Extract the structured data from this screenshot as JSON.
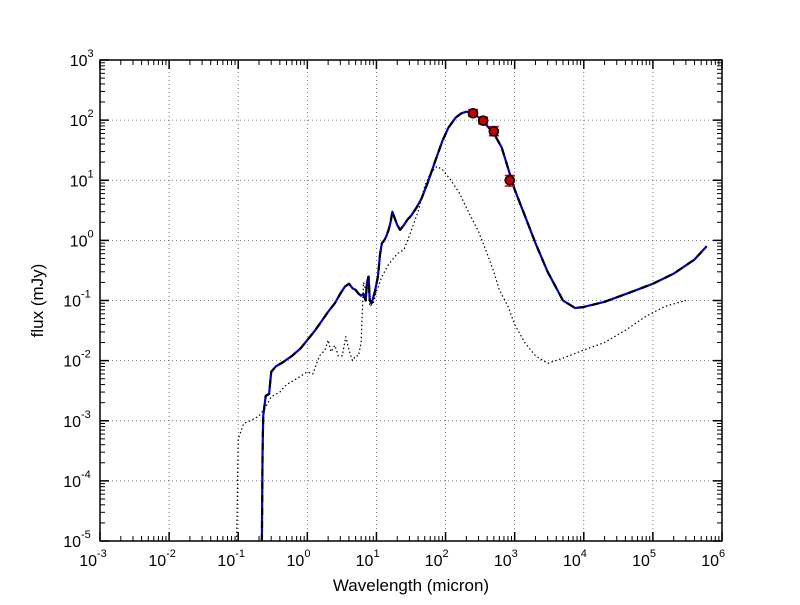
{
  "chart_data": {
    "type": "line",
    "xlabel": "Wavelength (micron)",
    "ylabel": "flux (mJy)",
    "xscale": "log",
    "yscale": "log",
    "xlim": [
      0.001,
      1000000
    ],
    "ylim": [
      1e-05,
      1000
    ],
    "grid": true,
    "x_ticks": [
      {
        "value": 0.001,
        "base": "10",
        "exp": "-3"
      },
      {
        "value": 0.01,
        "base": "10",
        "exp": "-2"
      },
      {
        "value": 0.1,
        "base": "10",
        "exp": "-1"
      },
      {
        "value": 1,
        "base": "10",
        "exp": "0"
      },
      {
        "value": 10,
        "base": "10",
        "exp": "1"
      },
      {
        "value": 100,
        "base": "10",
        "exp": "2"
      },
      {
        "value": 1000,
        "base": "10",
        "exp": "3"
      },
      {
        "value": 10000,
        "base": "10",
        "exp": "4"
      },
      {
        "value": 100000,
        "base": "10",
        "exp": "5"
      },
      {
        "value": 1000000,
        "base": "10",
        "exp": "6"
      }
    ],
    "y_ticks": [
      {
        "value": 1e-05,
        "base": "10",
        "exp": "-5"
      },
      {
        "value": 0.0001,
        "base": "10",
        "exp": "-4"
      },
      {
        "value": 0.001,
        "base": "10",
        "exp": "-3"
      },
      {
        "value": 0.01,
        "base": "10",
        "exp": "-2"
      },
      {
        "value": 0.1,
        "base": "10",
        "exp": "-1"
      },
      {
        "value": 1,
        "base": "10",
        "exp": "0"
      },
      {
        "value": 10,
        "base": "10",
        "exp": "1"
      },
      {
        "value": 100,
        "base": "10",
        "exp": "2"
      },
      {
        "value": 1000,
        "base": "10",
        "exp": "3"
      }
    ],
    "series": [
      {
        "style": "solid",
        "color": "#0000cc",
        "points": [
          [
            0.22,
            1e-05
          ],
          [
            0.225,
            0.0003
          ],
          [
            0.23,
            0.0012
          ],
          [
            0.25,
            0.0026
          ],
          [
            0.28,
            0.0028
          ],
          [
            0.3,
            0.0065
          ],
          [
            0.35,
            0.008
          ],
          [
            0.45,
            0.0095
          ],
          [
            0.6,
            0.012
          ],
          [
            0.8,
            0.016
          ],
          [
            1.0,
            0.022
          ],
          [
            1.3,
            0.032
          ],
          [
            1.6,
            0.045
          ],
          [
            2.0,
            0.065
          ],
          [
            2.5,
            0.09
          ],
          [
            3.0,
            0.13
          ],
          [
            3.5,
            0.17
          ],
          [
            4.0,
            0.19
          ],
          [
            4.5,
            0.16
          ],
          [
            5.0,
            0.15
          ],
          [
            5.5,
            0.13
          ],
          [
            6.0,
            0.12
          ],
          [
            6.5,
            0.13
          ],
          [
            7.0,
            0.1
          ],
          [
            7.3,
            0.2
          ],
          [
            7.7,
            0.25
          ],
          [
            8.0,
            0.1
          ],
          [
            8.5,
            0.09
          ],
          [
            9.5,
            0.14
          ],
          [
            10.5,
            0.25
          ],
          [
            11.3,
            0.6
          ],
          [
            12.0,
            0.9
          ],
          [
            13,
            1.0
          ],
          [
            14,
            1.2
          ],
          [
            15,
            1.5
          ],
          [
            16,
            2.0
          ],
          [
            17,
            3.0
          ],
          [
            18,
            2.5
          ],
          [
            20,
            1.8
          ],
          [
            22,
            1.5
          ],
          [
            25,
            1.8
          ],
          [
            28,
            2.2
          ],
          [
            32,
            2.6
          ],
          [
            38,
            3.5
          ],
          [
            45,
            5
          ],
          [
            55,
            9
          ],
          [
            70,
            20
          ],
          [
            90,
            45
          ],
          [
            110,
            75
          ],
          [
            140,
            110
          ],
          [
            170,
            130
          ],
          [
            200,
            138
          ],
          [
            240,
            132
          ],
          [
            300,
            112
          ],
          [
            400,
            80
          ],
          [
            500,
            60
          ],
          [
            650,
            35
          ],
          [
            800,
            16
          ],
          [
            1000,
            7
          ],
          [
            1400,
            2.6
          ],
          [
            2000,
            0.9
          ],
          [
            3000,
            0.3
          ],
          [
            5000,
            0.1
          ],
          [
            7500,
            0.075
          ],
          [
            10000,
            0.078
          ],
          [
            20000,
            0.095
          ],
          [
            50000,
            0.14
          ],
          [
            100000,
            0.19
          ],
          [
            200000,
            0.28
          ],
          [
            400000,
            0.48
          ],
          [
            600000,
            0.8
          ]
        ]
      },
      {
        "style": "dashed",
        "color": "#000000",
        "points": [
          [
            0.22,
            1e-05
          ],
          [
            0.225,
            0.0003
          ],
          [
            0.23,
            0.0012
          ],
          [
            0.25,
            0.0026
          ],
          [
            0.28,
            0.0028
          ],
          [
            0.3,
            0.0065
          ],
          [
            0.35,
            0.008
          ],
          [
            0.45,
            0.0095
          ],
          [
            0.6,
            0.012
          ],
          [
            0.8,
            0.016
          ],
          [
            1.0,
            0.022
          ],
          [
            1.3,
            0.032
          ],
          [
            1.6,
            0.045
          ],
          [
            2.0,
            0.065
          ],
          [
            2.5,
            0.09
          ],
          [
            3.0,
            0.13
          ],
          [
            3.5,
            0.17
          ],
          [
            4.0,
            0.19
          ],
          [
            4.5,
            0.16
          ],
          [
            5.0,
            0.15
          ],
          [
            5.5,
            0.13
          ],
          [
            6.0,
            0.12
          ],
          [
            6.5,
            0.13
          ],
          [
            7.0,
            0.1
          ],
          [
            7.3,
            0.2
          ],
          [
            7.7,
            0.25
          ],
          [
            8.0,
            0.1
          ],
          [
            8.5,
            0.09
          ],
          [
            9.5,
            0.14
          ],
          [
            10.5,
            0.25
          ],
          [
            11.3,
            0.6
          ],
          [
            12.0,
            0.9
          ],
          [
            13,
            1.0
          ],
          [
            14,
            1.2
          ],
          [
            15,
            1.5
          ],
          [
            16,
            2.0
          ],
          [
            17,
            3.0
          ],
          [
            18,
            2.5
          ],
          [
            20,
            1.8
          ],
          [
            22,
            1.5
          ],
          [
            25,
            1.8
          ],
          [
            28,
            2.2
          ],
          [
            32,
            2.6
          ],
          [
            38,
            3.5
          ],
          [
            45,
            5
          ],
          [
            55,
            9
          ],
          [
            70,
            20
          ],
          [
            90,
            45
          ],
          [
            110,
            75
          ],
          [
            140,
            110
          ],
          [
            170,
            130
          ],
          [
            200,
            138
          ],
          [
            240,
            132
          ],
          [
            300,
            112
          ],
          [
            400,
            80
          ],
          [
            500,
            60
          ],
          [
            650,
            35
          ],
          [
            800,
            16
          ],
          [
            1000,
            7
          ],
          [
            1400,
            2.6
          ],
          [
            2000,
            0.9
          ],
          [
            3000,
            0.3
          ],
          [
            5000,
            0.1
          ],
          [
            7500,
            0.075
          ],
          [
            10000,
            0.078
          ],
          [
            20000,
            0.095
          ],
          [
            50000,
            0.14
          ],
          [
            100000,
            0.19
          ],
          [
            200000,
            0.28
          ],
          [
            400000,
            0.48
          ],
          [
            600000,
            0.8
          ]
        ]
      },
      {
        "style": "dotted",
        "color": "#000000",
        "points": [
          [
            0.095,
            1e-05
          ],
          [
            0.1,
            0.0005
          ],
          [
            0.12,
            0.0009
          ],
          [
            0.15,
            0.001
          ],
          [
            0.2,
            0.0012
          ],
          [
            0.25,
            0.0017
          ],
          [
            0.3,
            0.0025
          ],
          [
            0.4,
            0.003
          ],
          [
            0.5,
            0.004
          ],
          [
            0.7,
            0.005
          ],
          [
            1.0,
            0.0065
          ],
          [
            1.2,
            0.006
          ],
          [
            1.5,
            0.012
          ],
          [
            1.8,
            0.015
          ],
          [
            2.0,
            0.022
          ],
          [
            2.2,
            0.014
          ],
          [
            2.5,
            0.018
          ],
          [
            2.8,
            0.012
          ],
          [
            3.2,
            0.012
          ],
          [
            3.6,
            0.025
          ],
          [
            4.0,
            0.015
          ],
          [
            4.5,
            0.01
          ],
          [
            5.0,
            0.012
          ],
          [
            5.5,
            0.012
          ],
          [
            6.0,
            0.02
          ],
          [
            6.5,
            0.2
          ],
          [
            7.0,
            0.15
          ],
          [
            7.5,
            0.25
          ],
          [
            8.0,
            0.08
          ],
          [
            9.0,
            0.09
          ],
          [
            10.0,
            0.14
          ],
          [
            12,
            0.25
          ],
          [
            15,
            0.4
          ],
          [
            20,
            0.6
          ],
          [
            25,
            0.7
          ],
          [
            30,
            1.2
          ],
          [
            40,
            3
          ],
          [
            50,
            8
          ],
          [
            60,
            13
          ],
          [
            75,
            17
          ],
          [
            90,
            15
          ],
          [
            120,
            10
          ],
          [
            160,
            6
          ],
          [
            200,
            3.5
          ],
          [
            300,
            1.4
          ],
          [
            400,
            0.6
          ],
          [
            500,
            0.3
          ],
          [
            600,
            0.15
          ],
          [
            800,
            0.08
          ],
          [
            1000,
            0.04
          ],
          [
            1400,
            0.02
          ],
          [
            2000,
            0.012
          ],
          [
            3000,
            0.009
          ],
          [
            5000,
            0.011
          ],
          [
            10000,
            0.015
          ],
          [
            20000,
            0.02
          ],
          [
            40000,
            0.032
          ],
          [
            80000,
            0.055
          ],
          [
            150000,
            0.08
          ],
          [
            300000,
            0.1
          ]
        ]
      },
      {
        "style": "markers",
        "color": "#cc0000",
        "points": [
          [
            250,
            130
          ],
          [
            350,
            98
          ],
          [
            500,
            65
          ],
          [
            850,
            10
          ]
        ],
        "error_high": [
          150,
          112,
          78,
          12
        ],
        "error_low": [
          115,
          86,
          55,
          8
        ]
      }
    ]
  }
}
